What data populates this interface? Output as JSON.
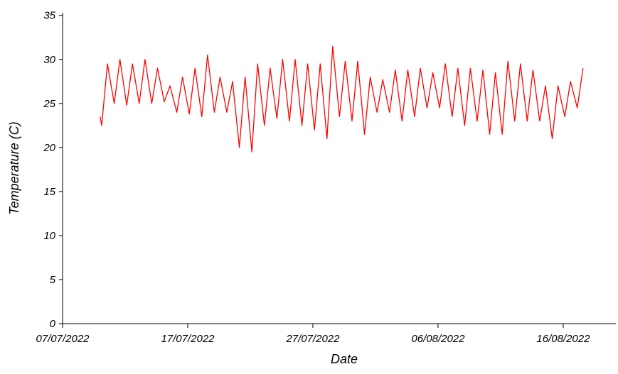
{
  "chart_data": {
    "type": "line",
    "x_label": "Date",
    "y_label": "Temperature (C)",
    "x": [
      "2022-07-10 00:00",
      "2022-07-10 03:00",
      "2022-07-10 14:00",
      "2022-07-11 03:00",
      "2022-07-11 14:00",
      "2022-07-12 03:00",
      "2022-07-12 14:00",
      "2022-07-13 03:00",
      "2022-07-13 14:00",
      "2022-07-14 03:00",
      "2022-07-14 14:00",
      "2022-07-15 03:00",
      "2022-07-15 14:00",
      "2022-07-16 03:00",
      "2022-07-16 14:00",
      "2022-07-17 03:00",
      "2022-07-17 14:00",
      "2022-07-18 03:00",
      "2022-07-18 14:00",
      "2022-07-19 03:00",
      "2022-07-19 14:00",
      "2022-07-20 03:00",
      "2022-07-20 14:00",
      "2022-07-21 03:00",
      "2022-07-21 14:00",
      "2022-07-22 03:00",
      "2022-07-22 14:00",
      "2022-07-23 03:00",
      "2022-07-23 14:00",
      "2022-07-24 03:00",
      "2022-07-24 14:00",
      "2022-07-25 03:00",
      "2022-07-25 14:00",
      "2022-07-26 03:00",
      "2022-07-26 14:00",
      "2022-07-27 03:00",
      "2022-07-27 14:00",
      "2022-07-28 03:00",
      "2022-07-28 14:00",
      "2022-07-29 03:00",
      "2022-07-29 14:00",
      "2022-07-30 03:00",
      "2022-07-30 14:00",
      "2022-07-31 03:00",
      "2022-07-31 14:00",
      "2022-08-01 03:00",
      "2022-08-01 14:00",
      "2022-08-02 03:00",
      "2022-08-02 14:00",
      "2022-08-03 03:00",
      "2022-08-03 14:00",
      "2022-08-04 03:00",
      "2022-08-04 14:00",
      "2022-08-05 03:00",
      "2022-08-05 14:00",
      "2022-08-06 03:00",
      "2022-08-06 14:00",
      "2022-08-07 03:00",
      "2022-08-07 14:00",
      "2022-08-08 03:00",
      "2022-08-08 14:00",
      "2022-08-09 03:00",
      "2022-08-09 14:00",
      "2022-08-10 03:00",
      "2022-08-10 14:00",
      "2022-08-11 03:00",
      "2022-08-11 14:00",
      "2022-08-12 03:00",
      "2022-08-12 14:00",
      "2022-08-13 03:00",
      "2022-08-13 14:00",
      "2022-08-14 03:00",
      "2022-08-14 14:00",
      "2022-08-15 03:00",
      "2022-08-15 14:00",
      "2022-08-16 03:00",
      "2022-08-16 14:00",
      "2022-08-17 03:00",
      "2022-08-17 14:00"
    ],
    "series": [
      {
        "name": "Temperature",
        "color": "#ff0000",
        "values": [
          23.5,
          22.5,
          29.5,
          25,
          30,
          24.8,
          29.5,
          25,
          30,
          25,
          29,
          25.2,
          27,
          24,
          28,
          23.8,
          29,
          23.5,
          30.5,
          24,
          28,
          24,
          27.5,
          20,
          28,
          19.5,
          29.5,
          22.5,
          29,
          23.3,
          30,
          23,
          30,
          22.5,
          29.5,
          22,
          29.5,
          21,
          31.5,
          23.5,
          29.8,
          23,
          29.8,
          21.5,
          28,
          24,
          27.7,
          24,
          28.8,
          23,
          28.8,
          23.5,
          29,
          24.5,
          28.5,
          24.5,
          29.5,
          23.5,
          29,
          22.5,
          29,
          23,
          28.8,
          21.5,
          28.5,
          21.5,
          29.8,
          23,
          29.5,
          23,
          28.8,
          23,
          27,
          21,
          27,
          23.5,
          27.5,
          24.5,
          29
        ]
      }
    ],
    "xlim": [
      "2022-07-07 00:00",
      "2022-08-20 05:00"
    ],
    "xticks": [
      {
        "value": "2022-07-07 00:00",
        "label": "07/07/2022"
      },
      {
        "value": "2022-07-17 00:00",
        "label": "17/07/2022"
      },
      {
        "value": "2022-07-27 00:00",
        "label": "27/07/2022"
      },
      {
        "value": "2022-08-06 00:00",
        "label": "06/08/2022"
      },
      {
        "value": "2022-08-16 00:00",
        "label": "16/08/2022"
      }
    ],
    "ylim": [
      0,
      35.3
    ],
    "yticks": [
      0,
      5,
      10,
      15,
      20,
      25,
      30,
      35
    ],
    "grid": false
  }
}
